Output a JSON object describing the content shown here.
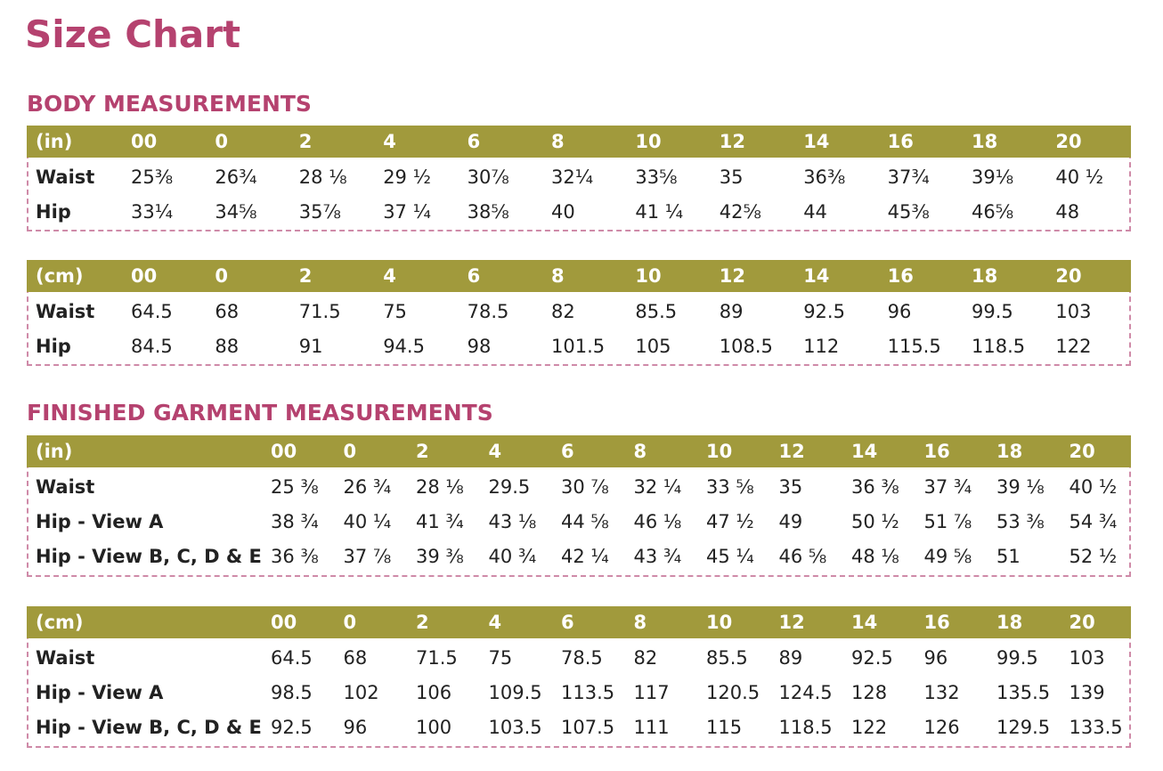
{
  "title": "Size Chart",
  "sections": [
    {
      "heading": "BODY MEASUREMENTS",
      "tables": [
        {
          "header": [
            "(in)",
            "00",
            "0",
            "2",
            "4",
            "6",
            "8",
            "10",
            "12",
            "14",
            "16",
            "18",
            "20"
          ],
          "rows": [
            [
              "Waist",
              "25⅜",
              "26¾",
              "28 ⅛",
              "29 ½",
              "30⅞",
              "32¼",
              "33⅝",
              "35",
              "36⅜",
              "37¾",
              "39⅛",
              "40 ½"
            ],
            [
              "Hip",
              "33¼",
              "34⅝",
              "35⅞",
              "37 ¼",
              "38⅝",
              "40",
              "41 ¼",
              "42⅝",
              "44",
              "45⅜",
              "46⅝",
              "48"
            ]
          ]
        },
        {
          "header": [
            "(cm)",
            "00",
            "0",
            "2",
            "4",
            "6",
            "8",
            "10",
            "12",
            "14",
            "16",
            "18",
            "20"
          ],
          "rows": [
            [
              "Waist",
              "64.5",
              "68",
              "71.5",
              "75",
              "78.5",
              "82",
              "85.5",
              "89",
              "92.5",
              "96",
              "99.5",
              "103"
            ],
            [
              "Hip",
              "84.5",
              "88",
              "91",
              "94.5",
              "98",
              "101.5",
              "105",
              "108.5",
              "112",
              "115.5",
              "118.5",
              "122"
            ]
          ]
        }
      ]
    },
    {
      "heading": "FINISHED GARMENT MEASUREMENTS",
      "tables": [
        {
          "header": [
            "(in)",
            "00",
            "0",
            "2",
            "4",
            "6",
            "8",
            "10",
            "12",
            "14",
            "16",
            "18",
            "20"
          ],
          "rows": [
            [
              "Waist",
              "25 ⅜",
              "26 ¾",
              "28 ⅛",
              "29.5",
              "30 ⅞",
              "32 ¼",
              "33 ⅝",
              "35",
              "36 ⅜",
              "37 ¾",
              "39 ⅛",
              "40 ½"
            ],
            [
              "Hip - View A",
              "38 ¾",
              "40 ¼",
              "41 ¾",
              "43 ⅛",
              "44 ⅝",
              "46 ⅛",
              "47 ½",
              "49",
              "50 ½",
              "51 ⅞",
              "53 ⅜",
              "54 ¾"
            ],
            [
              "Hip - View B, C, D & E",
              "36 ⅜",
              "37 ⅞",
              "39 ⅜",
              "40 ¾",
              "42 ¼",
              "43 ¾",
              "45 ¼",
              "46 ⅝",
              "48 ⅛",
              "49 ⅝",
              "51",
              "52 ½"
            ]
          ]
        },
        {
          "header": [
            "(cm)",
            "00",
            "0",
            "2",
            "4",
            "6",
            "8",
            "10",
            "12",
            "14",
            "16",
            "18",
            "20"
          ],
          "rows": [
            [
              "Waist",
              "64.5",
              "68",
              "71.5",
              "75",
              "78.5",
              "82",
              "85.5",
              "89",
              "92.5",
              "96",
              "99.5",
              "103"
            ],
            [
              "Hip - View A",
              "98.5",
              "102",
              "106",
              "109.5",
              "113.5",
              "117",
              "120.5",
              "124.5",
              "128",
              "132",
              "135.5",
              "139"
            ],
            [
              "Hip - View B, C, D & E",
              "92.5",
              "96",
              "100",
              "103.5",
              "107.5",
              "111",
              "115",
              "118.5",
              "122",
              "126",
              "129.5",
              "133.5"
            ]
          ]
        }
      ]
    }
  ]
}
